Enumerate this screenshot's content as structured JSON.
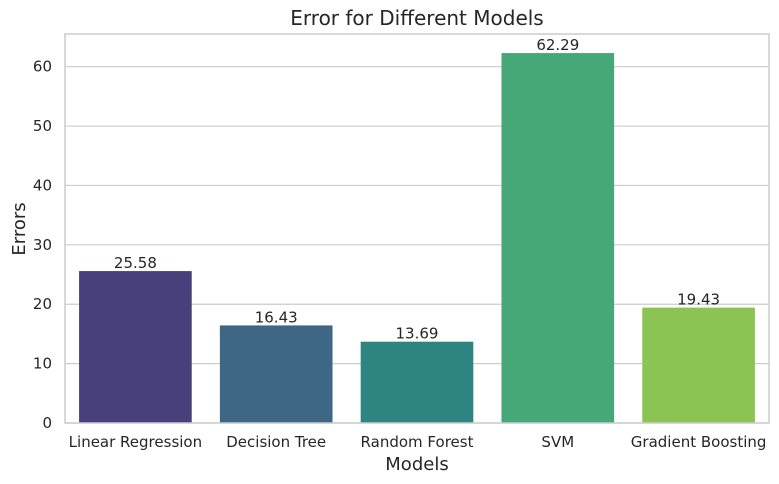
{
  "chart_data": {
    "type": "bar",
    "title": "Error for Different Models",
    "xlabel": "Models",
    "ylabel": "Errors",
    "categories": [
      "Linear Regression",
      "Decision Tree",
      "Random Forest",
      "SVM",
      "Gradient Boosting"
    ],
    "values": [
      25.58,
      16.43,
      13.69,
      62.29,
      19.43
    ],
    "value_labels": [
      "25.58",
      "16.43",
      "13.69",
      "62.29",
      "19.43"
    ],
    "colors": [
      "#48407a",
      "#3d6784",
      "#2e8480",
      "#47a877",
      "#8bc453"
    ],
    "ylim": [
      0,
      65.5
    ],
    "yticks": [
      "0",
      "10",
      "20",
      "30",
      "40",
      "50",
      "60"
    ],
    "grid": "horizontal"
  }
}
